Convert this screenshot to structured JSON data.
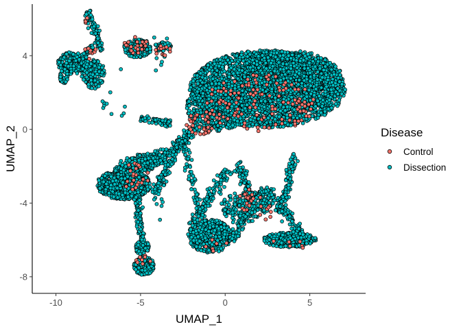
{
  "chart_data": {
    "type": "scatter",
    "title": "",
    "xlabel": "UMAP_1",
    "ylabel": "UMAP_2",
    "xlim": [
      -11.4,
      8.3
    ],
    "ylim": [
      -8.9,
      6.8
    ],
    "x_ticks": [
      -10,
      -5,
      0,
      5
    ],
    "x_tick_labels": [
      "-10",
      "-5",
      "0",
      "5"
    ],
    "y_ticks": [
      -8,
      -4,
      0,
      4
    ],
    "y_tick_labels": [
      "-8",
      "-4",
      "0",
      "4"
    ],
    "grid": false,
    "legend": {
      "title": "Disease",
      "placement": "right",
      "entries": [
        {
          "label": "Control",
          "color": "#F8766D"
        },
        {
          "label": "Dissection",
          "color": "#00BFC4"
        }
      ]
    },
    "point_outline_color": "#000000",
    "series": [
      {
        "name": "Dissection",
        "color": "#00BFC4",
        "clusters": [
          {
            "type": "ellipse",
            "cx": 2.5,
            "cy": 2.2,
            "rx": 4.6,
            "ry": 2.1,
            "n": 2600
          },
          {
            "type": "ellipse",
            "cx": 3.8,
            "cy": 2.6,
            "rx": 3.2,
            "ry": 1.7,
            "n": 900
          },
          {
            "type": "ellipse",
            "cx": -0.5,
            "cy": 1.2,
            "rx": 1.8,
            "ry": 1.3,
            "n": 500
          },
          {
            "type": "ellipse",
            "cx": -9.0,
            "cy": 3.6,
            "rx": 0.9,
            "ry": 0.6,
            "n": 220
          },
          {
            "type": "ellipse",
            "cx": -7.8,
            "cy": 3.0,
            "rx": 0.7,
            "ry": 0.8,
            "n": 160
          },
          {
            "type": "ellipse",
            "cx": -9.5,
            "cy": 2.9,
            "rx": 0.3,
            "ry": 0.4,
            "n": 40
          },
          {
            "type": "ellipse",
            "cx": -5.2,
            "cy": 4.4,
            "rx": 0.8,
            "ry": 0.5,
            "n": 160
          },
          {
            "type": "ellipse",
            "cx": -3.7,
            "cy": 4.5,
            "rx": 0.5,
            "ry": 0.25,
            "n": 60
          },
          {
            "type": "ellipse",
            "cx": -6.0,
            "cy": -3.0,
            "rx": 1.6,
            "ry": 0.8,
            "n": 650
          },
          {
            "type": "ellipse",
            "cx": -4.8,
            "cy": -1.8,
            "rx": 0.9,
            "ry": 0.5,
            "n": 120
          },
          {
            "type": "ellipse",
            "cx": -4.8,
            "cy": -7.4,
            "rx": 0.6,
            "ry": 0.5,
            "n": 220
          },
          {
            "type": "ellipse",
            "cx": -4.9,
            "cy": -6.4,
            "rx": 0.4,
            "ry": 0.4,
            "n": 80
          },
          {
            "type": "ellipse",
            "cx": -0.9,
            "cy": -5.8,
            "rx": 1.3,
            "ry": 0.9,
            "n": 420
          },
          {
            "type": "ellipse",
            "cx": 3.8,
            "cy": -6.0,
            "rx": 1.6,
            "ry": 0.4,
            "n": 300
          },
          {
            "type": "ellipse",
            "cx": 1.2,
            "cy": -4.2,
            "rx": 1.5,
            "ry": 0.8,
            "n": 160
          },
          {
            "type": "segment",
            "x1": -8.1,
            "y1": 6.4,
            "x2": -7.3,
            "y2": 4.3,
            "w": 0.2,
            "n": 90
          },
          {
            "type": "segment",
            "x1": -8.4,
            "y1": 4.0,
            "x2": -7.8,
            "y2": 4.5,
            "w": 0.15,
            "n": 30
          },
          {
            "type": "segment",
            "x1": -5.0,
            "y1": 0.6,
            "x2": -3.2,
            "y2": 0.3,
            "w": 0.18,
            "n": 70
          },
          {
            "type": "segment",
            "x1": -6.5,
            "y1": -2.2,
            "x2": -3.3,
            "y2": -1.3,
            "w": 0.35,
            "n": 180
          },
          {
            "type": "segment",
            "x1": -3.3,
            "y1": -1.3,
            "x2": -1.6,
            "y2": 0.2,
            "w": 0.25,
            "n": 120
          },
          {
            "type": "segment",
            "x1": -4.2,
            "y1": -3.5,
            "x2": -2.6,
            "y2": -0.6,
            "w": 0.25,
            "n": 120
          },
          {
            "type": "segment",
            "x1": -5.2,
            "y1": -3.6,
            "x2": -4.9,
            "y2": -6.0,
            "w": 0.2,
            "n": 80
          },
          {
            "type": "segment",
            "x1": -2.0,
            "y1": -5.2,
            "x2": 0.2,
            "y2": -2.2,
            "w": 0.3,
            "n": 120
          },
          {
            "type": "segment",
            "x1": 0.4,
            "y1": -6.0,
            "x2": 2.2,
            "y2": -3.2,
            "w": 0.35,
            "n": 130
          },
          {
            "type": "segment",
            "x1": 2.4,
            "y1": -3.2,
            "x2": 4.7,
            "y2": -5.9,
            "w": 0.3,
            "n": 130
          },
          {
            "type": "segment",
            "x1": 3.3,
            "y1": -4.6,
            "x2": 4.1,
            "y2": -1.3,
            "w": 0.25,
            "n": 90
          },
          {
            "type": "segment",
            "x1": 0.8,
            "y1": -1.8,
            "x2": 1.5,
            "y2": -3.8,
            "w": 0.3,
            "n": 80
          },
          {
            "type": "segment",
            "x1": -2.6,
            "y1": -0.5,
            "x2": -1.4,
            "y2": -4.8,
            "w": 0.25,
            "n": 80
          },
          {
            "type": "scatter",
            "x1": -7.5,
            "y1": 0.6,
            "x2": -5.8,
            "y2": 2.2,
            "n": 10
          },
          {
            "type": "scatter",
            "x1": -6.3,
            "y1": 3.2,
            "x2": -2.6,
            "y2": 5.0,
            "n": 12
          },
          {
            "type": "scatter",
            "x1": -4.2,
            "y1": -5.4,
            "x2": -3.6,
            "y2": -3.0,
            "n": 10
          }
        ]
      },
      {
        "name": "Control",
        "color": "#F8766D",
        "clusters": [
          {
            "type": "ellipse",
            "cx": 2.0,
            "cy": 1.4,
            "rx": 3.4,
            "ry": 1.6,
            "n": 130
          },
          {
            "type": "ellipse",
            "cx": -1.5,
            "cy": 0.3,
            "rx": 0.8,
            "ry": 0.6,
            "n": 30
          },
          {
            "type": "ellipse",
            "cx": -5.3,
            "cy": 4.6,
            "rx": 0.8,
            "ry": 0.5,
            "n": 26
          },
          {
            "type": "ellipse",
            "cx": -3.7,
            "cy": 4.3,
            "rx": 0.5,
            "ry": 0.3,
            "n": 12
          },
          {
            "type": "ellipse",
            "cx": -8.0,
            "cy": 4.3,
            "rx": 0.5,
            "ry": 0.5,
            "n": 8
          },
          {
            "type": "ellipse",
            "cx": -8.2,
            "cy": 6.0,
            "rx": 0.1,
            "ry": 0.3,
            "n": 4
          },
          {
            "type": "ellipse",
            "cx": -5.2,
            "cy": -2.6,
            "rx": 0.9,
            "ry": 0.8,
            "n": 22
          },
          {
            "type": "ellipse",
            "cx": -4.8,
            "cy": -7.2,
            "rx": 0.5,
            "ry": 0.5,
            "n": 10
          },
          {
            "type": "ellipse",
            "cx": 1.3,
            "cy": -3.8,
            "rx": 0.8,
            "ry": 0.6,
            "n": 18
          },
          {
            "type": "ellipse",
            "cx": 2.3,
            "cy": -4.5,
            "rx": 0.6,
            "ry": 0.4,
            "n": 8
          },
          {
            "type": "ellipse",
            "cx": 3.8,
            "cy": -6.2,
            "rx": 1.2,
            "ry": 0.3,
            "n": 6
          },
          {
            "type": "ellipse",
            "cx": -0.5,
            "cy": -6.2,
            "rx": 0.8,
            "ry": 0.5,
            "n": 6
          }
        ]
      }
    ]
  }
}
